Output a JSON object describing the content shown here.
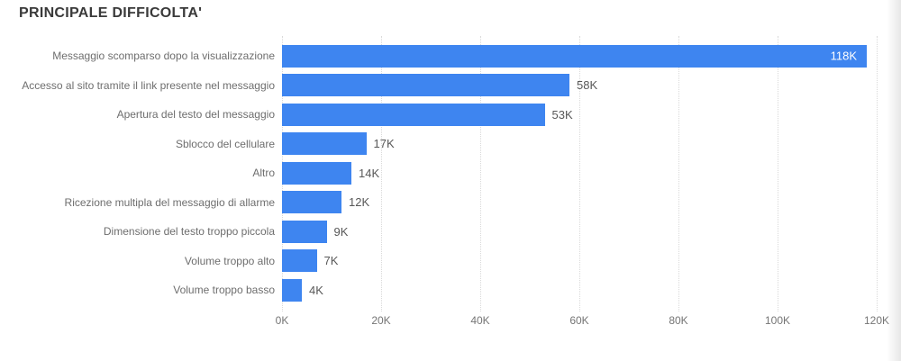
{
  "title": "PRINCIPALE DIFFICOLTA'",
  "colors": {
    "bar": "#3E85F0",
    "title_text": "#3a3a3a",
    "category_text": "#6e6e6e",
    "value_text": "#585858",
    "value_text_inside": "#ffffff",
    "axis_text": "#757575",
    "gridline": "#d9d9d9",
    "background": "#ffffff"
  },
  "chart_data": {
    "type": "bar",
    "orientation": "horizontal",
    "title": "PRINCIPALE DIFFICOLTA'",
    "categories": [
      "Messaggio scomparso dopo la visualizzazione",
      "Accesso al sito tramite il link presente nel messaggio",
      "Apertura del testo del messaggio",
      "Sblocco del cellulare",
      "Altro",
      "Ricezione multipla del messaggio di allarme",
      "Dimensione del testo troppo piccola",
      "Volume troppo alto",
      "Volume troppo basso"
    ],
    "values": [
      118,
      58,
      53,
      17,
      14,
      12,
      9,
      7,
      4
    ],
    "value_labels": [
      "118K",
      "58K",
      "53K",
      "17K",
      "14K",
      "12K",
      "9K",
      "7K",
      "4K"
    ],
    "value_unit": "K",
    "xlabel": "",
    "ylabel": "",
    "xlim": [
      0,
      120
    ],
    "x_tick_values": [
      0,
      20,
      40,
      60,
      80,
      100,
      120
    ],
    "x_tick_labels": [
      "0K",
      "20K",
      "40K",
      "60K",
      "80K",
      "100K",
      "120K"
    ],
    "grid": "vertical-dotted",
    "legend": "none"
  }
}
